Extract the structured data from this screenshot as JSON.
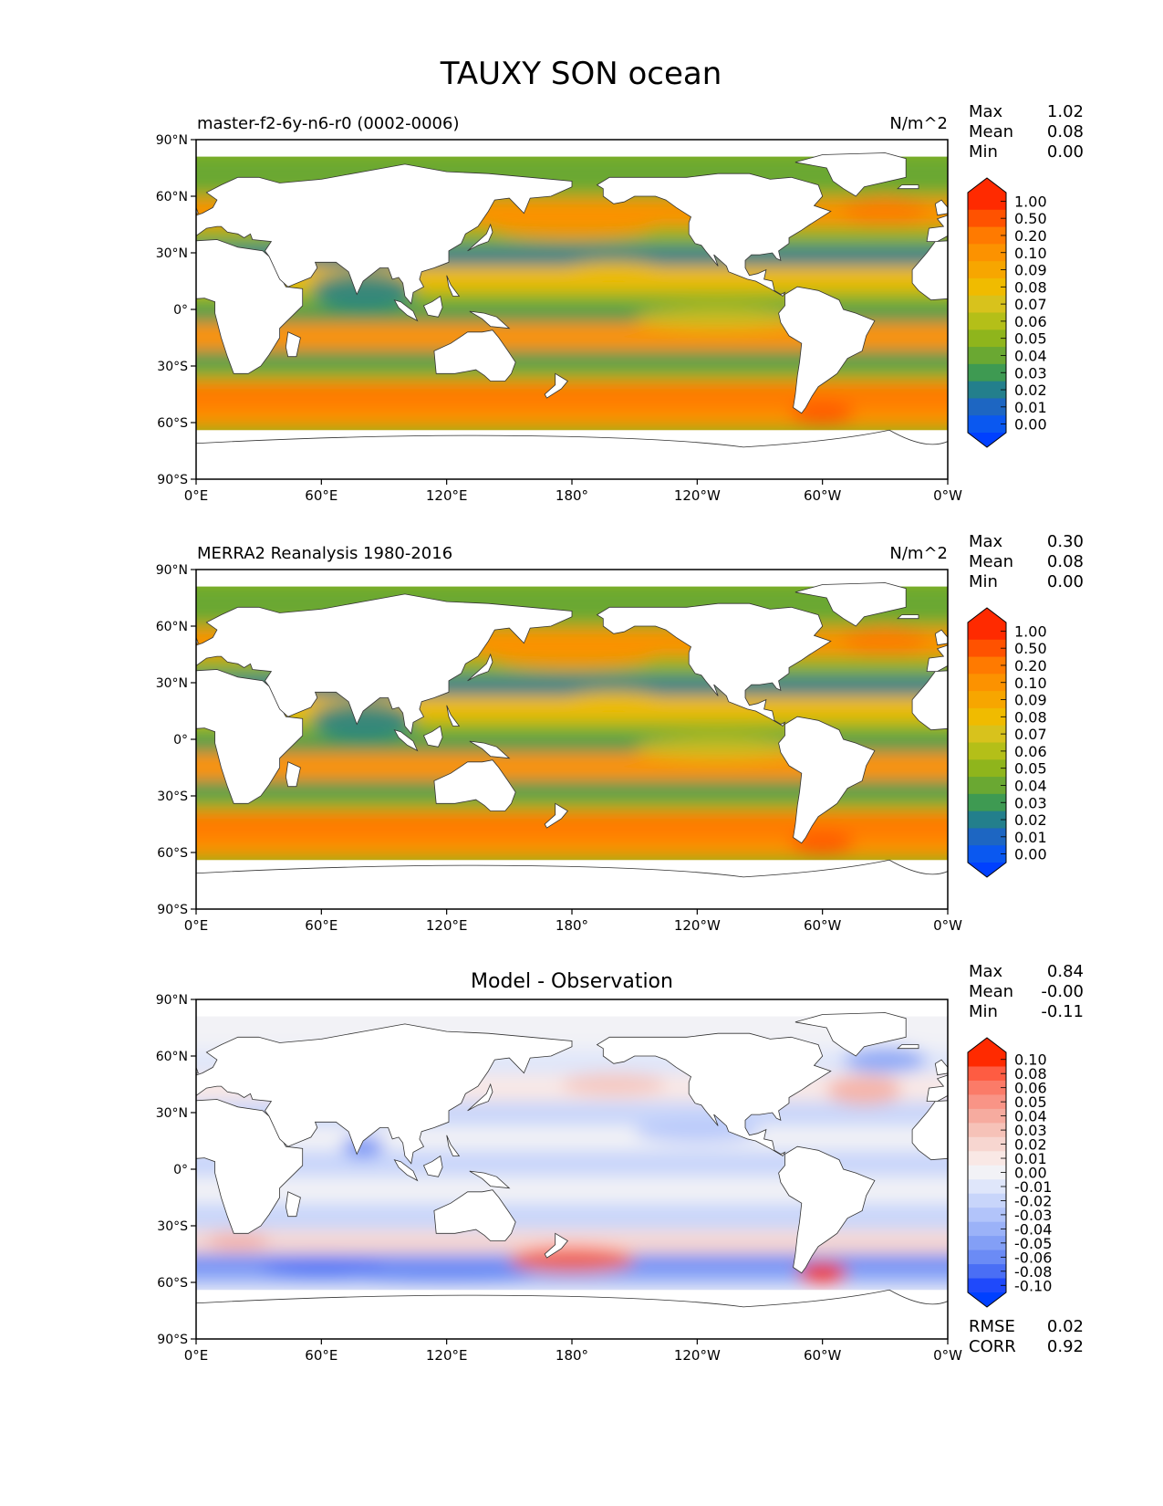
{
  "page": {
    "title": "TAUXY SON ocean"
  },
  "chart_data": [
    {
      "type": "heatmap",
      "kind": "map",
      "title_left": "master-f2-6y-n6-r0 (0002-0006)",
      "title_right": "N/m^2",
      "title_center": "",
      "xticks": [
        "0°E",
        "60°E",
        "120°E",
        "180°",
        "120°W",
        "60°W",
        "0°W"
      ],
      "yticks": [
        "90°N",
        "60°N",
        "30°N",
        "0°",
        "30°S",
        "60°S",
        "90°S"
      ],
      "xlim": [
        0,
        360
      ],
      "ylim": [
        -90,
        90
      ],
      "stats": [
        {
          "label": "Max",
          "value": "1.02"
        },
        {
          "label": "Mean",
          "value": "0.08"
        },
        {
          "label": "Min",
          "value": "0.00"
        }
      ],
      "extra_stats": [],
      "colorbar": {
        "levels": [
          "1.00",
          "0.50",
          "0.20",
          "0.10",
          "0.09",
          "0.08",
          "0.07",
          "0.06",
          "0.05",
          "0.04",
          "0.03",
          "0.02",
          "0.01",
          "0.00"
        ],
        "colors": [
          "#ff2a00",
          "#ff5200",
          "#ff7a00",
          "#fc9200",
          "#f7a600",
          "#f0bb00",
          "#d8c21c",
          "#b4bf18",
          "#8fb51c",
          "#6aa832",
          "#3e9a52",
          "#237f8c",
          "#1d66c2",
          "#0a58f0"
        ],
        "extend_top": "#ff2a00",
        "extend_bottom": "#0040ff"
      }
    },
    {
      "type": "heatmap",
      "kind": "map",
      "title_left": "MERRA2 Reanalysis 1980-2016",
      "title_right": "N/m^2",
      "title_center": "",
      "xticks": [
        "0°E",
        "60°E",
        "120°E",
        "180°",
        "120°W",
        "60°W",
        "0°W"
      ],
      "yticks": [
        "90°N",
        "60°N",
        "30°N",
        "0°",
        "30°S",
        "60°S",
        "90°S"
      ],
      "xlim": [
        0,
        360
      ],
      "ylim": [
        -90,
        90
      ],
      "stats": [
        {
          "label": "Max",
          "value": "0.30"
        },
        {
          "label": "Mean",
          "value": "0.08"
        },
        {
          "label": "Min",
          "value": "0.00"
        }
      ],
      "extra_stats": [],
      "colorbar": {
        "levels": [
          "1.00",
          "0.50",
          "0.20",
          "0.10",
          "0.09",
          "0.08",
          "0.07",
          "0.06",
          "0.05",
          "0.04",
          "0.03",
          "0.02",
          "0.01",
          "0.00"
        ],
        "colors": [
          "#ff2a00",
          "#ff5200",
          "#ff7a00",
          "#fc9200",
          "#f7a600",
          "#f0bb00",
          "#d8c21c",
          "#b4bf18",
          "#8fb51c",
          "#6aa832",
          "#3e9a52",
          "#237f8c",
          "#1d66c2",
          "#0a58f0"
        ],
        "extend_top": "#ff2a00",
        "extend_bottom": "#0040ff"
      }
    },
    {
      "type": "heatmap",
      "kind": "map",
      "title_left": "",
      "title_right": "",
      "title_center": "Model - Observation",
      "xticks": [
        "0°E",
        "60°E",
        "120°E",
        "180°",
        "120°W",
        "60°W",
        "0°W"
      ],
      "yticks": [
        "90°N",
        "60°N",
        "30°N",
        "0°",
        "30°S",
        "60°S",
        "90°S"
      ],
      "xlim": [
        0,
        360
      ],
      "ylim": [
        -90,
        90
      ],
      "stats": [
        {
          "label": "Max",
          "value": "0.84"
        },
        {
          "label": "Mean",
          "value": "-0.00"
        },
        {
          "label": "Min",
          "value": "-0.11"
        }
      ],
      "extra_stats": [
        {
          "label": "RMSE",
          "value": "0.02"
        },
        {
          "label": "CORR",
          "value": "0.92"
        }
      ],
      "colorbar": {
        "levels": [
          "0.10",
          "0.08",
          "0.06",
          "0.05",
          "0.04",
          "0.03",
          "0.02",
          "0.01",
          "0.00",
          "-0.01",
          "-0.02",
          "-0.03",
          "-0.04",
          "-0.05",
          "-0.06",
          "-0.08",
          "-0.10"
        ],
        "colors": [
          "#ff2a00",
          "#fe5c42",
          "#fb7b68",
          "#f99486",
          "#f6ab9f",
          "#f6c2b8",
          "#f7d6d0",
          "#f9e8e5",
          "#f2f2f6",
          "#dfe6fa",
          "#c8d5fa",
          "#b2c4fa",
          "#9bb2f8",
          "#839ff6",
          "#6b8bf5",
          "#4a6ef5",
          "#1f49fb"
        ],
        "extend_top": "#ff2a00",
        "extend_bottom": "#0040ff"
      }
    }
  ]
}
